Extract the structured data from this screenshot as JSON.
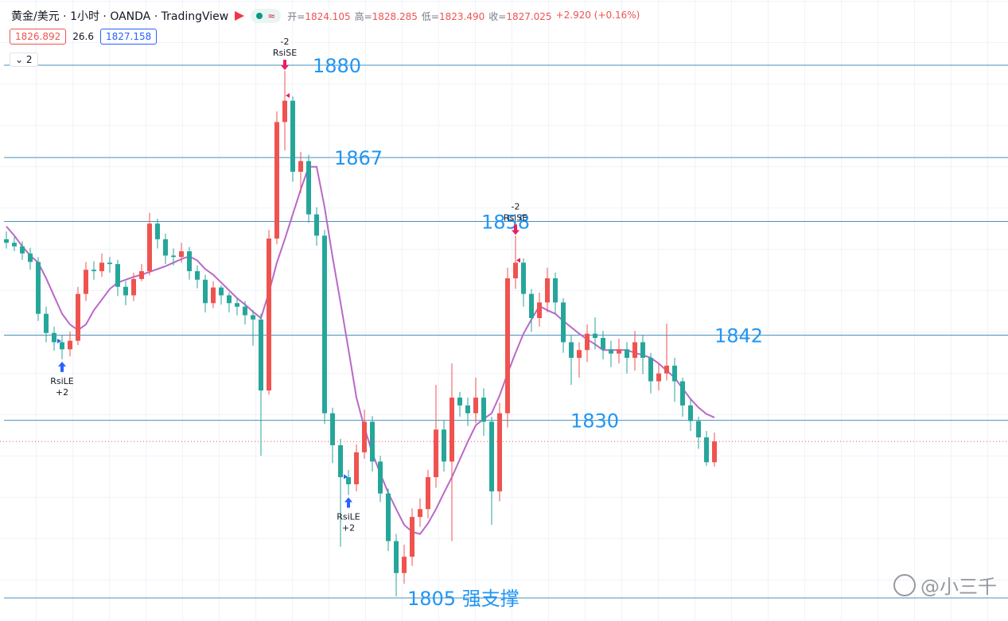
{
  "header": {
    "symbol": "黄金/美元 · 1小时 · OANDA · TradingView",
    "ohlc": [
      {
        "label": "开=",
        "value": "1824.105"
      },
      {
        "label": "高=",
        "value": "1828.285"
      },
      {
        "label": "低=",
        "value": "1823.490"
      },
      {
        "label": "收=",
        "value": "1827.025"
      }
    ],
    "change": "+2.920 (+0.16%)",
    "bid": "1826.892",
    "spread": "26.6",
    "ask": "1827.158",
    "indicators": "2"
  },
  "watermark": "@小三千",
  "chart_data": {
    "type": "candlestick",
    "up_color": "#ef5350",
    "down_color": "#26a69a",
    "ma_color": "#ba68c8",
    "level_color": "#4a90b8",
    "level_label_color": "#2196f3",
    "ylim": [
      1801.75,
      1889.18
    ],
    "open": [
      1855.5,
      1855.0,
      1854.5,
      1853.5,
      1852.3,
      1845.0,
      1842.3,
      1841.0,
      1840.0,
      1841.2,
      1847.8,
      1851.2,
      1851.0,
      1852.2,
      1852.0,
      1848.8,
      1847.6,
      1849.9,
      1851.0,
      1857.7,
      1855.5,
      1853.2,
      1853.0,
      1853.8,
      1851.0,
      1849.8,
      1846.5,
      1848.7,
      1847.6,
      1846.5,
      1846.0,
      1844.8,
      1844.2,
      1834.2,
      1855.6,
      1872.0,
      1875.0,
      1865.0,
      1866.5,
      1859.0,
      1856.0,
      1831.0,
      1826.5,
      1822.0,
      1821.0,
      1825.5,
      1829.8,
      1824.2,
      1819.7,
      1813.0,
      1808.5,
      1810.8,
      1816.4,
      1817.5,
      1822.0,
      1828.7,
      1824.2,
      1833.2,
      1832.1,
      1831.0,
      1833.2,
      1829.8,
      1820.0,
      1831.0,
      1850.0,
      1852.2,
      1847.8,
      1844.4,
      1846.6,
      1850.0,
      1846.6,
      1841.0,
      1838.8,
      1839.9,
      1842.2,
      1841.6,
      1840.0,
      1839.4,
      1840.0,
      1838.8,
      1841.0,
      1838.8,
      1835.5,
      1836.6,
      1837.7,
      1835.5,
      1832.1,
      1829.9,
      1827.6,
      1824.105
    ],
    "high": [
      1856.6,
      1855.8,
      1855.2,
      1854.3,
      1853.0,
      1846.0,
      1843.2,
      1842.0,
      1842.5,
      1848.8,
      1852.3,
      1852.4,
      1853.5,
      1853.0,
      1852.6,
      1849.6,
      1850.8,
      1852.0,
      1859.2,
      1858.4,
      1856.3,
      1854.2,
      1855.0,
      1854.4,
      1851.8,
      1850.5,
      1849.6,
      1849.0,
      1848.0,
      1847.2,
      1846.8,
      1845.5,
      1845.0,
      1856.8,
      1873.5,
      1879.2,
      1875.6,
      1867.8,
      1867.4,
      1860.0,
      1856.8,
      1831.8,
      1827.4,
      1823.0,
      1826.6,
      1831.5,
      1830.6,
      1825.0,
      1820.4,
      1814.0,
      1812.5,
      1817.6,
      1819.0,
      1823.0,
      1835.0,
      1830.0,
      1838.0,
      1834.0,
      1833.2,
      1836.0,
      1834.5,
      1830.5,
      1832.5,
      1851.5,
      1856.0,
      1852.8,
      1848.5,
      1848.0,
      1851.5,
      1850.8,
      1847.2,
      1842.0,
      1841.0,
      1843.5,
      1844.5,
      1842.6,
      1841.2,
      1841.5,
      1841.0,
      1842.6,
      1842.0,
      1839.5,
      1838.0,
      1843.6,
      1838.8,
      1836.0,
      1833.0,
      1830.5,
      1828.5,
      1828.285
    ],
    "low": [
      1854.2,
      1853.8,
      1852.6,
      1851.2,
      1844.0,
      1841.0,
      1839.8,
      1838.6,
      1839.0,
      1840.6,
      1846.8,
      1849.8,
      1850.2,
      1850.8,
      1847.5,
      1846.2,
      1846.8,
      1849.6,
      1850.4,
      1854.2,
      1852.0,
      1851.8,
      1852.2,
      1849.8,
      1848.6,
      1845.2,
      1845.8,
      1846.3,
      1845.2,
      1844.8,
      1843.5,
      1840.5,
      1825.0,
      1833.6,
      1854.8,
      1868.0,
      1863.6,
      1862.0,
      1857.8,
      1854.6,
      1829.5,
      1824.0,
      1812.2,
      1819.5,
      1820.0,
      1824.6,
      1822.8,
      1818.5,
      1811.6,
      1805.2,
      1807.0,
      1809.5,
      1815.0,
      1816.2,
      1820.5,
      1822.8,
      1813.0,
      1830.5,
      1829.2,
      1829.6,
      1827.8,
      1815.3,
      1818.6,
      1829.0,
      1848.5,
      1846.0,
      1842.5,
      1843.2,
      1845.2,
      1845.0,
      1839.5,
      1835.0,
      1836.0,
      1838.2,
      1840.0,
      1838.6,
      1837.5,
      1838.0,
      1836.6,
      1837.0,
      1836.5,
      1833.8,
      1834.2,
      1835.6,
      1832.6,
      1830.5,
      1828.5,
      1826.0,
      1823.6,
      1823.49
    ],
    "close": [
      1855.0,
      1854.5,
      1853.5,
      1852.3,
      1845.0,
      1842.3,
      1841.0,
      1840.0,
      1841.2,
      1847.8,
      1851.2,
      1851.0,
      1852.2,
      1852.0,
      1848.8,
      1847.6,
      1849.9,
      1851.0,
      1857.7,
      1855.5,
      1853.2,
      1853.0,
      1853.8,
      1851.0,
      1849.8,
      1846.5,
      1848.7,
      1847.6,
      1846.5,
      1846.0,
      1844.8,
      1844.2,
      1834.2,
      1855.6,
      1872.0,
      1875.0,
      1865.0,
      1866.5,
      1859.0,
      1856.0,
      1831.0,
      1826.5,
      1822.0,
      1821.0,
      1825.5,
      1829.8,
      1824.2,
      1819.7,
      1813.0,
      1808.5,
      1810.8,
      1816.4,
      1817.5,
      1822.0,
      1828.7,
      1824.2,
      1833.2,
      1832.1,
      1831.0,
      1833.2,
      1829.8,
      1820.0,
      1831.0,
      1850.0,
      1852.2,
      1847.8,
      1844.4,
      1846.6,
      1850.0,
      1846.6,
      1841.0,
      1838.8,
      1839.9,
      1842.2,
      1841.6,
      1840.0,
      1839.4,
      1840.0,
      1838.8,
      1841.0,
      1838.8,
      1835.5,
      1836.6,
      1837.7,
      1835.5,
      1832.1,
      1829.9,
      1827.6,
      1824.105,
      1827.025
    ],
    "ma": [
      1857.3,
      1856,
      1854.5,
      1853.2,
      1852.2,
      1850,
      1847.5,
      1845,
      1843.5,
      1842.7,
      1843.5,
      1845.5,
      1847,
      1848.5,
      1849.4,
      1849.8,
      1850.2,
      1850.5,
      1850.9,
      1851.3,
      1851.7,
      1852.2,
      1852.7,
      1853.1,
      1852.5,
      1851.3,
      1850.5,
      1849.4,
      1848.3,
      1847.2,
      1846.3,
      1845.3,
      1844.4,
      1848,
      1852.2,
      1855.5,
      1859,
      1862.5,
      1865.7,
      1865.7,
      1860,
      1853,
      1846.6,
      1840,
      1833.2,
      1829,
      1825.4,
      1822.5,
      1819.8,
      1817.5,
      1815.3,
      1814.3,
      1814,
      1815.5,
      1817.5,
      1819.8,
      1822,
      1824.5,
      1827,
      1829.3,
      1830.2,
      1831,
      1833.5,
      1836.6,
      1839.5,
      1842.2,
      1844.2,
      1846.1,
      1845.5,
      1845,
      1844,
      1843.1,
      1842.2,
      1841.4,
      1840.7,
      1839.9,
      1839.9,
      1839.9,
      1839.9,
      1839.5,
      1839.2,
      1838.8,
      1838,
      1837,
      1836,
      1834.5,
      1833,
      1831.8,
      1830.9,
      1830.4
    ],
    "levels": [
      1880,
      1867,
      1858,
      1842,
      1830,
      {
        "value": 1805,
        "label": "1805 强支撑"
      }
    ],
    "signals": [
      {
        "index": 7,
        "name": "RsiLE",
        "qty": "+2",
        "side": "long"
      },
      {
        "index": 35,
        "name": "RsiSE",
        "qty": "-2",
        "side": "short"
      },
      {
        "index": 43,
        "name": "RsiLE",
        "qty": "+2",
        "side": "long"
      },
      {
        "index": 64,
        "name": "RsiSE",
        "qty": "-2",
        "side": "short"
      }
    ]
  }
}
